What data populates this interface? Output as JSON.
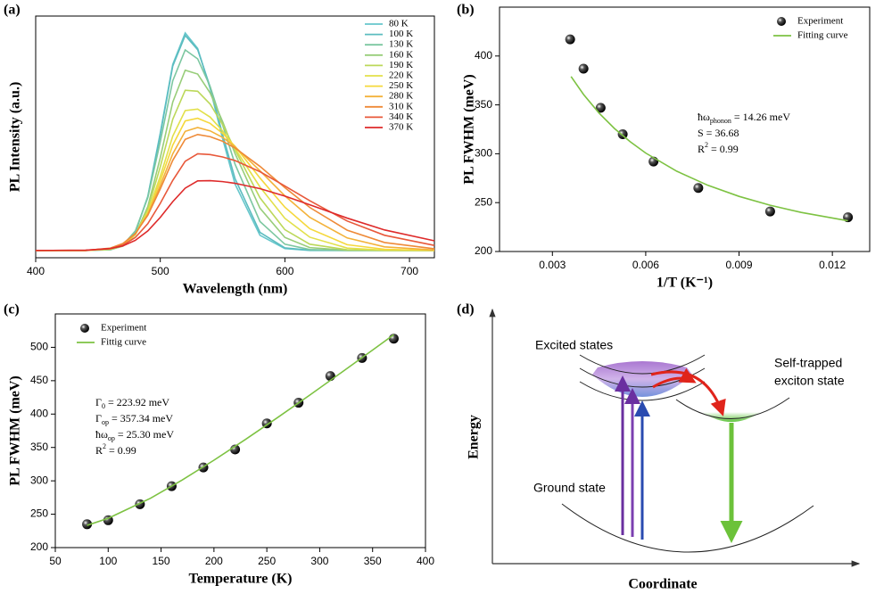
{
  "chart_data": [
    {
      "type": "line",
      "panel_label": "(a)",
      "x_label": "Wavelength (nm)",
      "y_label": "PL Intensity (a.u.)",
      "x": [
        400,
        440,
        460,
        470,
        480,
        490,
        500,
        510,
        520,
        530,
        540,
        550,
        560,
        580,
        600,
        620,
        650,
        680,
        720
      ],
      "xlim": [
        400,
        720
      ],
      "xticks": [
        400,
        500,
        600,
        700
      ],
      "ylim": [
        0,
        100
      ],
      "legend": "upper right",
      "series": [
        {
          "name": "80 K",
          "color": "#66c6cc",
          "values": [
            3,
            3,
            3.4,
            4.9,
            10.6,
            25.4,
            51.6,
            80,
            93,
            86.6,
            70,
            49.3,
            30.5,
            9.3,
            3.8,
            3,
            3,
            3,
            3
          ]
        },
        {
          "name": "100 K",
          "color": "#5bbcbf",
          "values": [
            3,
            3,
            3.3,
            4.9,
            10.6,
            25.2,
            51,
            79.3,
            92,
            86.1,
            70.7,
            51,
            32.7,
            10.5,
            4.1,
            3.1,
            3,
            3,
            3
          ]
        },
        {
          "name": "130 K",
          "color": "#7cc7a0",
          "values": [
            3,
            3,
            3.5,
            5.3,
            11.1,
            24.9,
            48,
            73.2,
            86,
            82.3,
            70.9,
            55,
            38.7,
            15,
            5.6,
            3.4,
            3,
            3,
            3
          ]
        },
        {
          "name": "160 K",
          "color": "#98cd7a",
          "values": [
            3,
            3,
            3.4,
            4.8,
            9.5,
            21.2,
            41.4,
            64.4,
            77.6,
            76,
            68.2,
            56.4,
            43.1,
            20.5,
            8.4,
            4.2,
            3.1,
            3,
            3
          ]
        },
        {
          "name": "190 K",
          "color": "#bcd85a",
          "values": [
            3,
            3,
            3.5,
            5,
            9.6,
            20.2,
            37.6,
            57.3,
            69.3,
            68.9,
            63.6,
            55.1,
            44.7,
            24.8,
            11.6,
            5.6,
            3.3,
            3,
            3
          ]
        },
        {
          "name": "220 K",
          "color": "#e2e04a",
          "values": [
            3,
            3,
            3.6,
            5.2,
            9.6,
            18.9,
            33.7,
            50.3,
            60.9,
            61.5,
            58.2,
            52.5,
            45.2,
            29.3,
            16.3,
            8.5,
            4,
            3.1,
            3
          ]
        },
        {
          "name": "250 K",
          "color": "#f5d83c",
          "values": [
            3,
            3,
            3.7,
            5.4,
            9.8,
            18.5,
            31.8,
            46.6,
            56.6,
            57.7,
            55.6,
            51.5,
            46.1,
            33,
            20.9,
            12,
            5.4,
            3.5,
            3
          ]
        },
        {
          "name": "280 K",
          "color": "#f3b23a",
          "values": [
            3,
            3,
            3.8,
            5.6,
            9.9,
            18,
            29.9,
            43,
            52.3,
            53.9,
            52.5,
            49.8,
            45.9,
            36,
            25.6,
            16.7,
            8.2,
            4.5,
            3.2
          ]
        },
        {
          "name": "310 K",
          "color": "#ee8a38",
          "values": [
            3,
            3,
            4,
            5.9,
            10,
            17.6,
            28.5,
            40.3,
            49,
            51,
            50.1,
            48.2,
            45.4,
            37.8,
            29,
            20.8,
            11.4,
            6.3,
            3.7
          ]
        },
        {
          "name": "340 K",
          "color": "#e8583a",
          "values": [
            3,
            3.1,
            3.8,
            5.2,
            8.4,
            14.1,
            22.5,
            32,
            39.9,
            43,
            42.7,
            41.7,
            40.2,
            35.6,
            29.7,
            23.6,
            15.2,
            9.3,
            5.1
          ]
        },
        {
          "name": "370 K",
          "color": "#de2a2a",
          "values": [
            3,
            3.1,
            3.8,
            4.9,
            7.2,
            11.1,
            16.7,
            23.2,
            28.8,
            31.8,
            31.9,
            31.5,
            30.8,
            28.6,
            25.5,
            21.9,
            16.4,
            11.5,
            7
          ]
        }
      ]
    },
    {
      "type": "scatter",
      "panel_label": "(b)",
      "x_label": "1/T (K⁻¹)",
      "y_label": "PL FWHM (meV)",
      "xlim": [
        0.0013,
        0.0132
      ],
      "xticks": [
        0.003,
        0.006,
        0.009,
        0.012
      ],
      "ylim": [
        200,
        450
      ],
      "yticks": [
        200,
        250,
        300,
        350,
        400
      ],
      "legend": "upper right",
      "series": [
        {
          "name": "Experiment",
          "type": "scatter",
          "color": "#000000",
          "x": [
            0.0125,
            0.01,
            0.00769,
            0.00625,
            0.00526,
            0.00455,
            0.004,
            0.00357
          ],
          "values": [
            235,
            241,
            265,
            292,
            320,
            347,
            387,
            417
          ]
        },
        {
          "name": "Fitting curve",
          "type": "line",
          "color": "#7dc242",
          "x": [
            0.0036,
            0.004,
            0.0045,
            0.005,
            0.0055,
            0.006,
            0.007,
            0.008,
            0.009,
            0.01,
            0.011,
            0.0125
          ],
          "values": [
            379,
            360.7,
            341.6,
            325.7,
            312.3,
            300.7,
            282.1,
            267.7,
            256.4,
            247.3,
            240,
            231.4
          ]
        }
      ],
      "annotation": [
        [
          {
            "text": "ħω"
          },
          {
            "text": "phonon",
            "shift": "sub"
          },
          {
            "text": " = 14.26 meV"
          }
        ],
        [
          {
            "text": "S = 36.68"
          }
        ],
        [
          {
            "text": "R"
          },
          {
            "text": "2",
            "shift": "super"
          },
          {
            "text": " = 0.99"
          }
        ]
      ]
    },
    {
      "type": "scatter",
      "panel_label": "(c)",
      "x_label": "Temperature (K)",
      "y_label": "PL FWHM (meV)",
      "xlim": [
        50,
        400
      ],
      "xticks": [
        50,
        100,
        150,
        200,
        250,
        300,
        350,
        400
      ],
      "ylim": [
        200,
        550
      ],
      "yticks": [
        200,
        250,
        300,
        350,
        400,
        450,
        500
      ],
      "legend": "upper left",
      "series": [
        {
          "name": "Experiment",
          "type": "scatter",
          "color": "#000000",
          "x": [
            80,
            100,
            130,
            160,
            190,
            220,
            250,
            280,
            310,
            340,
            370
          ],
          "values": [
            235,
            241,
            265,
            292,
            320,
            347,
            386,
            417,
            457,
            484,
            513
          ]
        },
        {
          "name": "Fittig curve",
          "type": "line",
          "color": "#7dc242",
          "x": [
            80,
            100,
            140,
            170,
            200,
            230,
            260,
            290,
            320,
            350,
            370
          ],
          "values": [
            233.3,
            243.9,
            273.9,
            301.2,
            330.9,
            362.2,
            394.6,
            427.8,
            461.7,
            495.9,
            518.9
          ]
        }
      ],
      "annotation": [
        [
          {
            "text": "Γ"
          },
          {
            "text": "0",
            "shift": "sub"
          },
          {
            "text": " = 223.92 meV"
          }
        ],
        [
          {
            "text": "Γ"
          },
          {
            "text": "op",
            "shift": "sub"
          },
          {
            "text": " =  357.34 meV"
          }
        ],
        [
          {
            "text": "ħω"
          },
          {
            "text": "op",
            "shift": "sub"
          },
          {
            "text": " = 25.30 meV"
          }
        ],
        [
          {
            "text": "R"
          },
          {
            "text": "2",
            "shift": "super"
          },
          {
            "text": " = 0.99"
          }
        ]
      ]
    }
  ],
  "diagram": {
    "panel_label": "(d)",
    "excited_states": "Excited states",
    "ste_line1": "Self-trapped",
    "ste_line2": "exciton state",
    "ground_state": "Ground state",
    "y_axis": "Energy",
    "x_axis": "Coordinate"
  }
}
